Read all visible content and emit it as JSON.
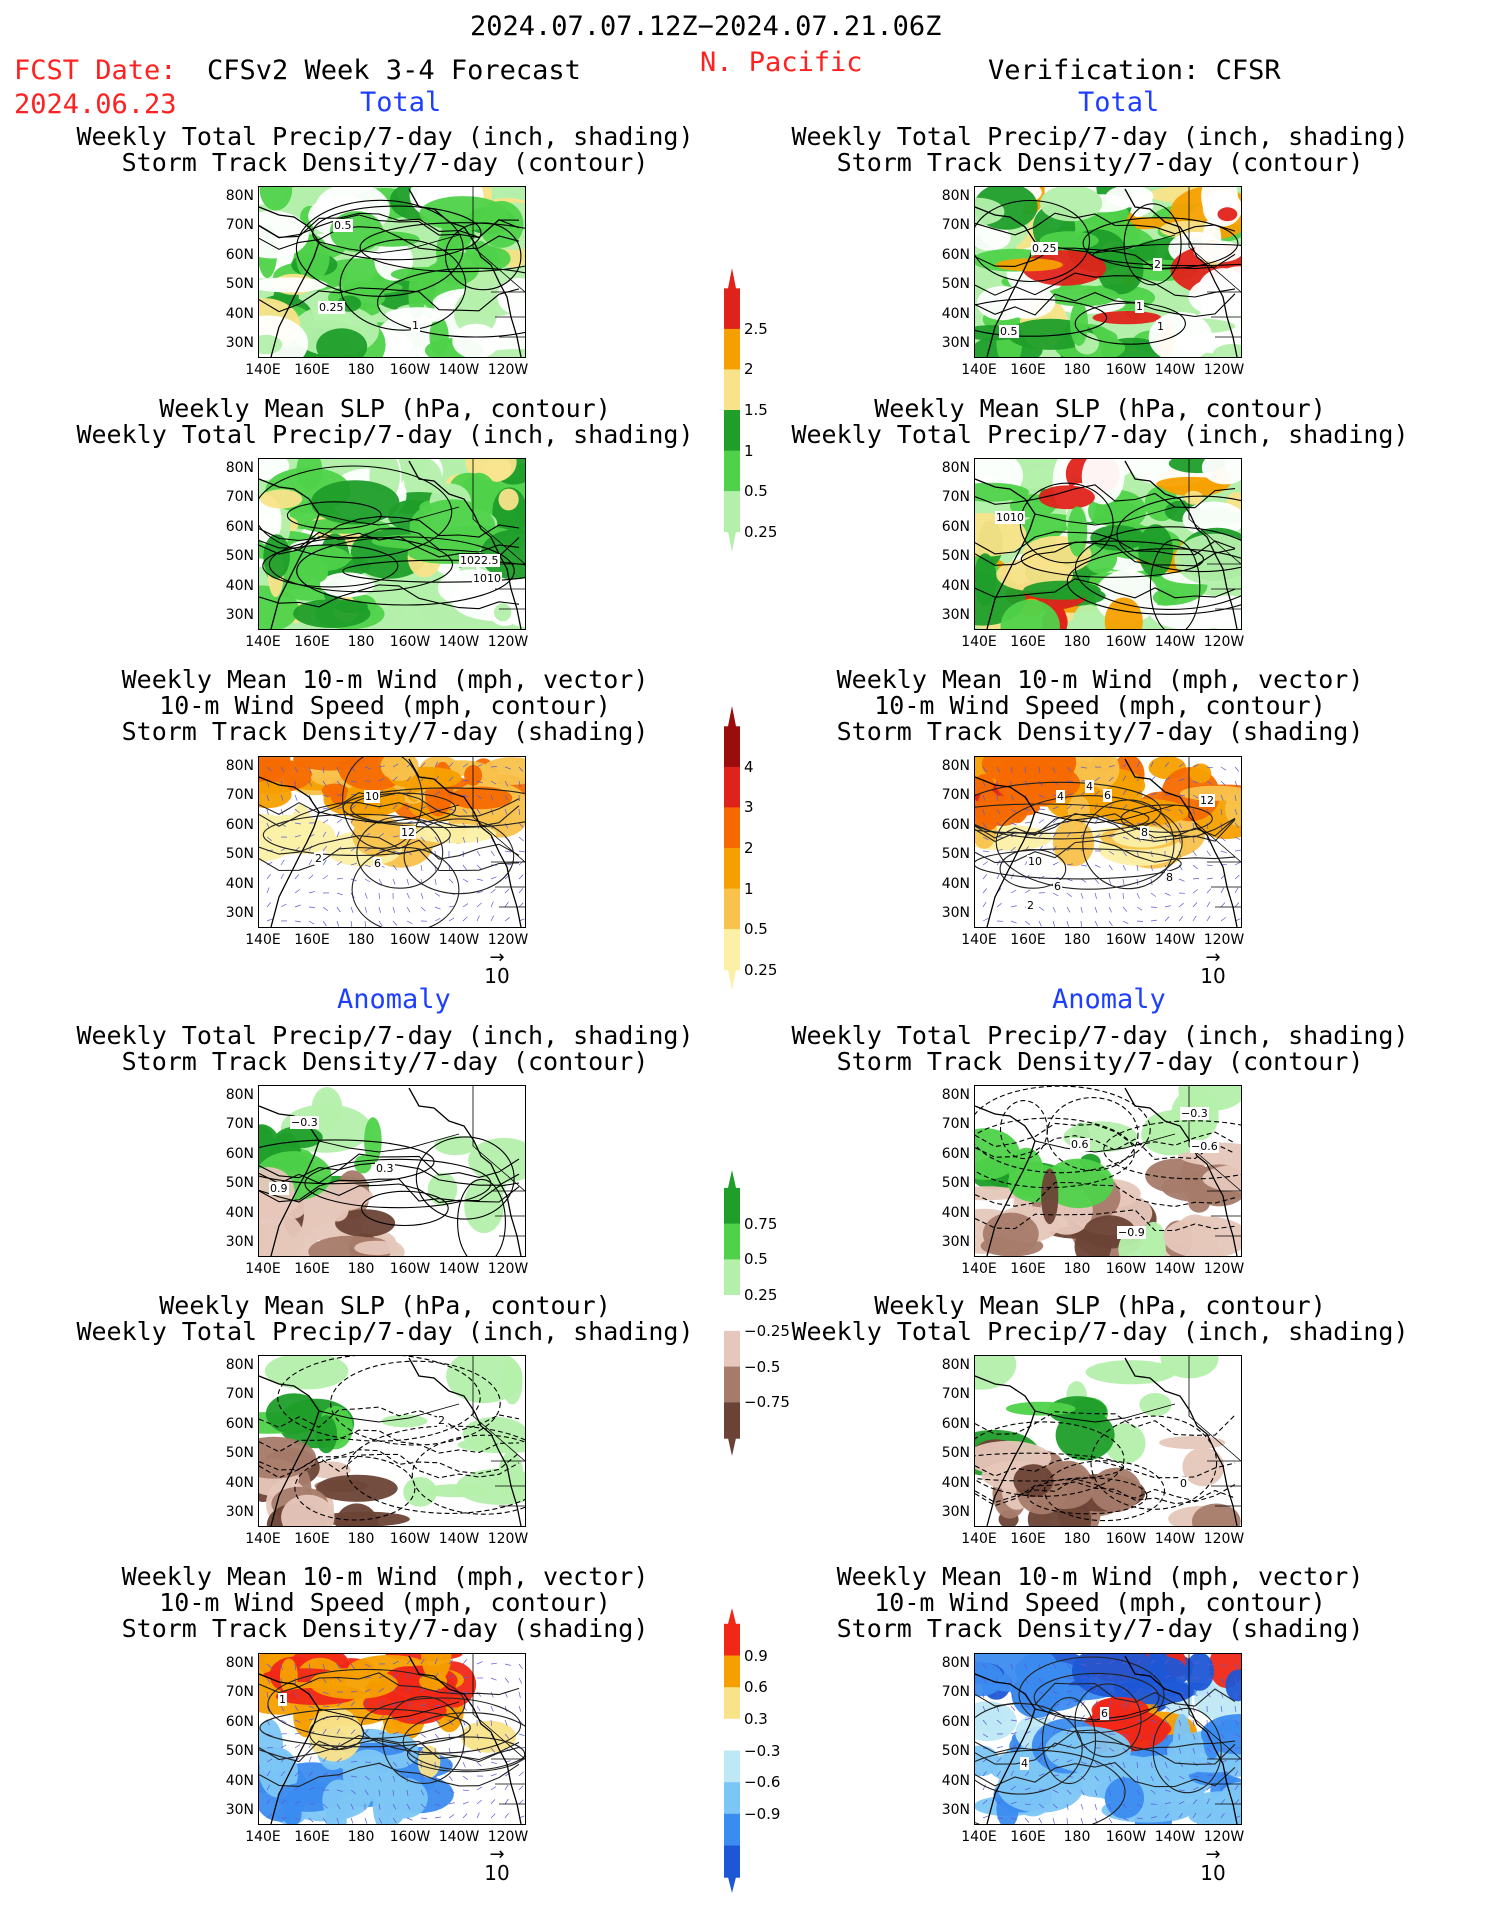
{
  "header": {
    "period": "2024.07.07.12Z−2024.07.21.06Z",
    "fcst_label": "FCST Date:",
    "fcst_date": "2024.06.23",
    "model": "CFSv2 Week 3-4 Forecast",
    "region": "N. Pacific",
    "verification": "Verification: CFSR"
  },
  "sections": {
    "total": "Total",
    "anomaly": "Anomaly"
  },
  "titles": {
    "precip_std": [
      "Weekly Total Precip/7-day (inch, shading)",
      "Storm Track Density/7-day (contour)"
    ],
    "slp_precip": [
      "Weekly Mean SLP (hPa, contour)",
      "Weekly Total Precip/7-day (inch, shading)"
    ],
    "wind": [
      "Weekly Mean 10-m Wind (mph, vector)",
      "10-m Wind Speed (mph, contour)",
      "Storm Track Density/7-day (shading)"
    ]
  },
  "axes": {
    "lat": [
      "80N",
      "70N",
      "60N",
      "50N",
      "40N",
      "30N"
    ],
    "lon": [
      "140E",
      "160E",
      "180",
      "160W",
      "140W",
      "120W"
    ]
  },
  "vector_ref": "10",
  "colorbars": [
    {
      "name": "total-precip",
      "labels": [
        "2.5",
        "2",
        "1.5",
        "1",
        "0.5",
        "0.25"
      ],
      "colors": [
        "#e0231a",
        "#f5a000",
        "#f9e38a",
        "#1f9e2a",
        "#4fd24a",
        "#b4f0ab"
      ]
    },
    {
      "name": "total-storm-track",
      "labels": [
        "4",
        "3",
        "2",
        "1",
        "0.5",
        "0.25"
      ],
      "colors": [
        "#9b0d0d",
        "#e0231a",
        "#f56a00",
        "#f5a000",
        "#f8c24c",
        "#fbf0a6"
      ]
    },
    {
      "name": "anom-precip",
      "labels": [
        "0.75",
        "0.5",
        "0.25",
        "−0.25",
        "−0.5",
        "−0.75"
      ],
      "colors": [
        "#1f9e2a",
        "#4fd24a",
        "#b4f0ab",
        "#ffffff",
        "#e6c7bb",
        "#a77b6a",
        "#6b4336"
      ]
    },
    {
      "name": "anom-storm-track",
      "labels": [
        "0.9",
        "0.6",
        "0.3",
        "−0.3",
        "−0.6",
        "−0.9"
      ],
      "colors": [
        "#f02818",
        "#f5a000",
        "#f9e38a",
        "#ffffff",
        "#bfe8f5",
        "#7cc6f5",
        "#3b8cf0",
        "#1e57d6"
      ]
    }
  ],
  "contour_labels": {
    "fcst_total_precip": [
      "1",
      "0.5",
      "0.25"
    ],
    "fcst_total_slp": [
      "1010",
      "1022.5"
    ],
    "fcst_total_wind": [
      "2",
      "10",
      "6",
      "12"
    ],
    "ver_total_precip": [
      "2",
      "1",
      "0.5",
      "1",
      "0.25"
    ],
    "ver_total_slp": [
      "1010"
    ],
    "ver_total_wind": [
      "4",
      "8",
      "6",
      "2",
      "4",
      "6",
      "8",
      "10",
      "12"
    ],
    "fcst_anom_precip": [
      "0.3",
      "0.9",
      "−0.3"
    ],
    "fcst_anom_slp": [
      "2"
    ],
    "fcst_anom_wind": [
      "1"
    ],
    "ver_anom_precip": [
      "−0.9",
      "0.6",
      "−0.6",
      "−0.3"
    ],
    "ver_anom_slp": [
      "0"
    ],
    "ver_anom_wind": [
      "4",
      "6"
    ]
  },
  "colors": {
    "red_text": "#ff2020",
    "blue_text": "#1f3fff"
  }
}
